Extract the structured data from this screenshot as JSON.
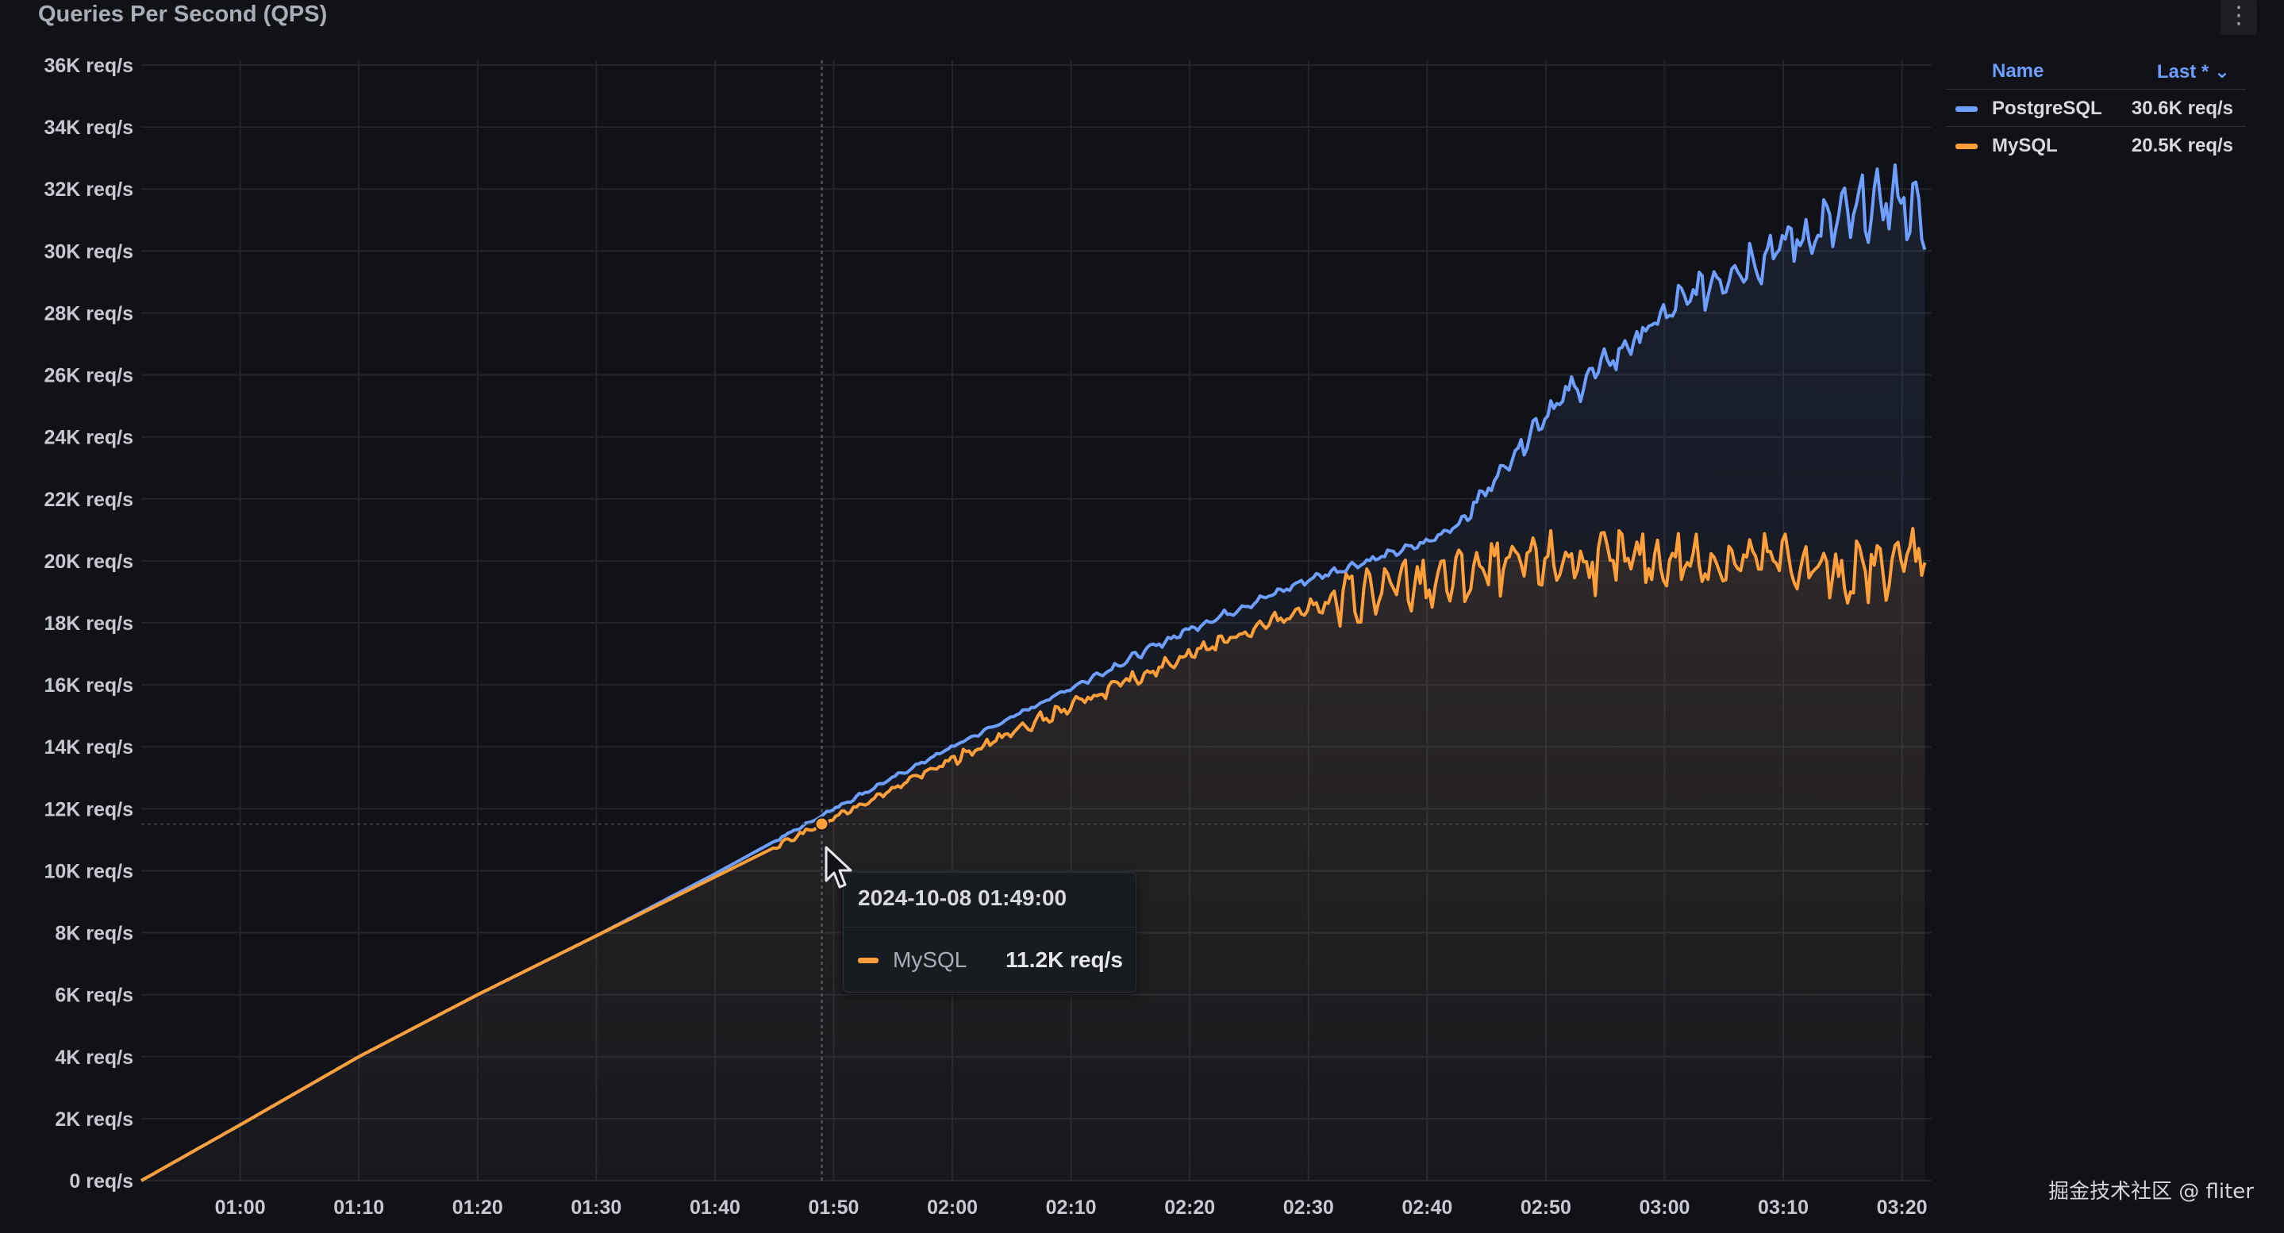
{
  "panel": {
    "title": "Queries Per Second (QPS)",
    "menu_icon": "kebab-menu-icon",
    "menu_glyph": "⋮"
  },
  "legend": {
    "name_header": "Name",
    "last_header": "Last * ⌄",
    "items": [
      {
        "name": "PostgreSQL",
        "last": "30.6K req/s",
        "color": "#6e9fff"
      },
      {
        "name": "MySQL",
        "last": "20.5K req/s",
        "color": "#ff9f3a"
      }
    ]
  },
  "tooltip": {
    "time": "2024-10-08 01:49:00",
    "series": "MySQL",
    "value": "11.2K req/s",
    "color": "#ff9f3a"
  },
  "watermark": "掘金技术社区 @ fliter",
  "chart_data": {
    "type": "area",
    "title": "Queries Per Second (QPS)",
    "xlabel": "",
    "ylabel": "",
    "x_ticks": [
      "01:00",
      "01:10",
      "01:20",
      "01:30",
      "01:40",
      "01:50",
      "02:00",
      "02:10",
      "02:20",
      "02:30",
      "02:40",
      "02:50",
      "03:00",
      "03:10",
      "03:20"
    ],
    "y_ticks": [
      "0 req/s",
      "2K req/s",
      "4K req/s",
      "6K req/s",
      "8K req/s",
      "10K req/s",
      "12K req/s",
      "14K req/s",
      "16K req/s",
      "18K req/s",
      "20K req/s",
      "22K req/s",
      "24K req/s",
      "26K req/s",
      "28K req/s",
      "30K req/s",
      "32K req/s",
      "34K req/s",
      "36K req/s"
    ],
    "ylim": [
      0,
      36000
    ],
    "xlim": [
      "00:51:40",
      "03:22:30"
    ],
    "y_unit": "req/s",
    "grid": true,
    "legend_position": "right",
    "series": [
      {
        "name": "PostgreSQL",
        "color": "#6e9fff",
        "x": [
          "00:51:40",
          "01:00",
          "01:10",
          "01:20",
          "01:30",
          "01:40",
          "01:50",
          "02:00",
          "02:10",
          "02:20",
          "02:30",
          "02:40",
          "02:43",
          "02:50",
          "03:00",
          "03:05",
          "03:10",
          "03:15",
          "03:20",
          "03:22"
        ],
        "values": [
          0,
          1800,
          4000,
          6000,
          7900,
          9900,
          12000,
          14000,
          15900,
          17800,
          19400,
          20600,
          21300,
          24800,
          27900,
          29300,
          30200,
          31000,
          31800,
          30600
        ]
      },
      {
        "name": "MySQL",
        "color": "#ff9f3a",
        "x": [
          "00:51:40",
          "01:00",
          "01:10",
          "01:20",
          "01:30",
          "01:40",
          "01:50",
          "02:00",
          "02:10",
          "02:20",
          "02:30",
          "02:40",
          "02:50",
          "03:00",
          "03:10",
          "03:15",
          "03:20",
          "03:22"
        ],
        "values": [
          0,
          1800,
          4000,
          6000,
          7900,
          9800,
          11700,
          13600,
          15300,
          17000,
          18500,
          19300,
          20000,
          20000,
          20000,
          19500,
          20000,
          20500
        ]
      }
    ],
    "tooltip_time": "2024-10-08 01:49:00",
    "tooltip_value": "11.2K req/s"
  }
}
